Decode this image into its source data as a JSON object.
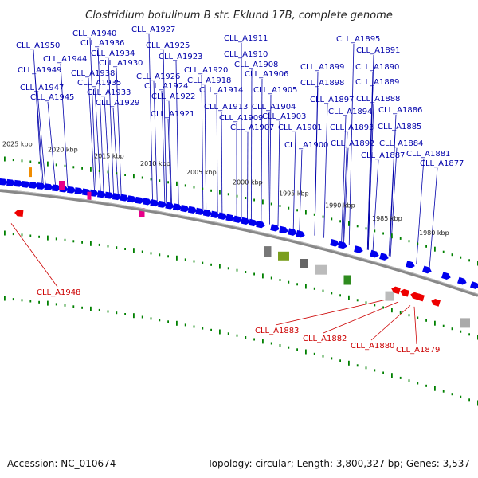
{
  "title": "Clostridium botulinum B str. Eklund 17B, complete genome",
  "footer": {
    "accession": "Accession: NC_010674",
    "summary": "Topology: circular; Length: 3,800,327 bp; Genes: 3,537"
  },
  "colors": {
    "forward_gene": "#0000ee",
    "reverse_gene": "#ee0000",
    "forward_label": "#0000aa",
    "reverse_label": "#cc0000",
    "backbone": "#888888",
    "tick": "#008000"
  },
  "ticks": [
    "2025 kbp",
    "2020 kbp",
    "2015 kbp",
    "2010 kbp",
    "2005 kbp",
    "2000 kbp",
    "1995 kbp",
    "1990 kbp",
    "1985 kbp",
    "1980 kbp"
  ],
  "forward_labels": [
    "CLL_A1950",
    "CLL_A1940",
    "CLL_A1936",
    "CLL_A1944",
    "CLL_A1934",
    "CLL_A1930",
    "CLL_A1949",
    "CLL_A1938",
    "CLL_A1935",
    "CLL_A1947",
    "CLL_A1933",
    "CLL_A1945",
    "CLL_A1929",
    "CLL_A1927",
    "CLL_A1925",
    "CLL_A1923",
    "CLL_A1926",
    "CLL_A1924",
    "CLL_A1922",
    "CLL_A1921",
    "CLL_A1920",
    "CLL_A1918",
    "CLL_A1914",
    "CLL_A1913",
    "CLL_A1911",
    "CLL_A1910",
    "CLL_A1908",
    "CLL_A1906",
    "CLL_A1905",
    "CLL_A1904",
    "CLL_A1909",
    "CLL_A1903",
    "CLL_A1907",
    "CLL_A1901",
    "CLL_A1900",
    "CLL_A1895",
    "CLL_A1891",
    "CLL_A1899",
    "CLL_A1890",
    "CLL_A1898",
    "CLL_A1889",
    "CLL_A1897",
    "CLL_A1888",
    "CLL_A1894",
    "CLL_A1886",
    "CLL_A1893",
    "CLL_A1885",
    "CLL_A1892",
    "CLL_A1884",
    "CLL_A1887",
    "CLL_A1881",
    "CLL_A1877"
  ],
  "reverse_labels": [
    "CLL_A1948",
    "CLL_A1883",
    "CLL_A1882",
    "CLL_A1880",
    "CLL_A1879"
  ]
}
